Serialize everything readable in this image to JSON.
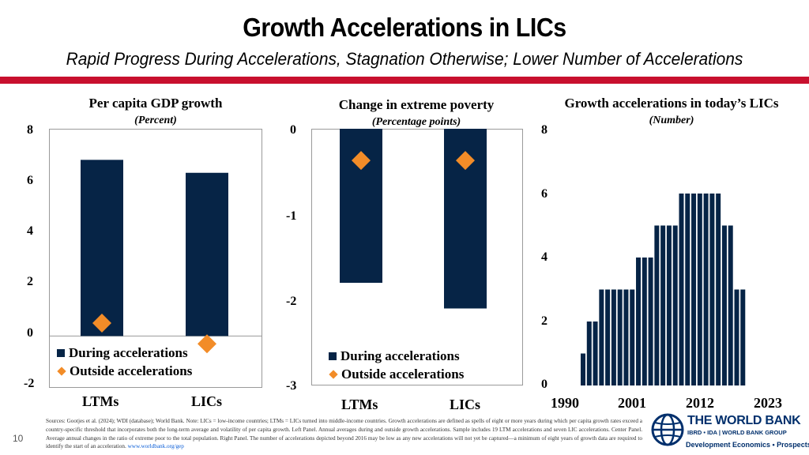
{
  "header": {
    "title": "Growth Accelerations in LICs",
    "subtitle": "Rapid Progress During Accelerations, Stagnation Otherwise; Lower Number of Accelerations"
  },
  "colors": {
    "bar": "#062446",
    "marker": "#f28c28",
    "accent_line": "#c8102e",
    "logo_blue": "#002f6c"
  },
  "chart_data": [
    {
      "type": "bar",
      "title": "Per capita GDP growth",
      "subtitle": "(Percent)",
      "categories": [
        "LTMs",
        "LICs"
      ],
      "series": [
        {
          "name": "During accelerations",
          "values": [
            6.8,
            6.3
          ]
        },
        {
          "name": "Outside accelerations",
          "values": [
            0.5,
            -0.3
          ]
        }
      ],
      "ylim": [
        -2,
        8
      ],
      "yticks": [
        "8",
        "6",
        "4",
        "2",
        "0",
        "-2"
      ],
      "legend": "bottom"
    },
    {
      "type": "bar",
      "title": "Change in extreme poverty",
      "subtitle": "(Percentage points)",
      "categories": [
        "LTMs",
        "LICs"
      ],
      "series": [
        {
          "name": "During accelerations",
          "values": [
            -1.8,
            -2.1
          ]
        },
        {
          "name": "Outside accelerations",
          "values": [
            -0.37,
            -0.37
          ]
        }
      ],
      "ylim": [
        -3,
        0
      ],
      "yticks": [
        "0",
        "-1",
        "-2",
        "-3"
      ],
      "legend": "bottom"
    },
    {
      "type": "bar",
      "title": "Growth accelerations in today’s LICs",
      "subtitle": "(Number)",
      "x": [
        1990,
        1991,
        1992,
        1993,
        1994,
        1995,
        1996,
        1997,
        1998,
        1999,
        2000,
        2001,
        2002,
        2003,
        2004,
        2005,
        2006,
        2007,
        2008,
        2009,
        2010,
        2011,
        2012,
        2013,
        2014,
        2015,
        2016
      ],
      "values": [
        1,
        2,
        2,
        3,
        3,
        3,
        3,
        3,
        3,
        4,
        4,
        4,
        5,
        5,
        5,
        5,
        6,
        6,
        6,
        6,
        6,
        6,
        6,
        5,
        5,
        3,
        3
      ],
      "ylim": [
        0,
        8
      ],
      "yticks": [
        "8",
        "6",
        "4",
        "2",
        "0"
      ],
      "xticks": [
        "1990",
        "2001",
        "2012",
        "2023"
      ]
    }
  ],
  "footer": {
    "note": "Sources: Gootjes et al. (2024); WDI (database); World Bank. Note: LICs = low-income countries; LTMs = LICs turned into middle-income countries. Growth accelerations are defined as spells of eight or more years during which per capita growth rates exceed a country-specific threshold that incorporates both the long-term average and volatility of per capita growth. Left Panel. Annual averages during and outside growth accelerations. Sample includes 19 LTM accelerations and seven LIC accelerations. Center Panel. Average annual changes in the ratio of extreme poor to the total population. Right Panel. The number of accelerations depicted beyond 2016 may be low as any new accelerations will not yet be captured—a minimum of eight years of growth data are required to identify the start of an acceleration.",
    "link": "www.worldbank.org/gep",
    "page": "10",
    "logo_name": "THE WORLD BANK",
    "logo_line2": "IBRD • IDA | WORLD BANK GROUP",
    "logo_line3": "Development Economics • Prospects"
  }
}
